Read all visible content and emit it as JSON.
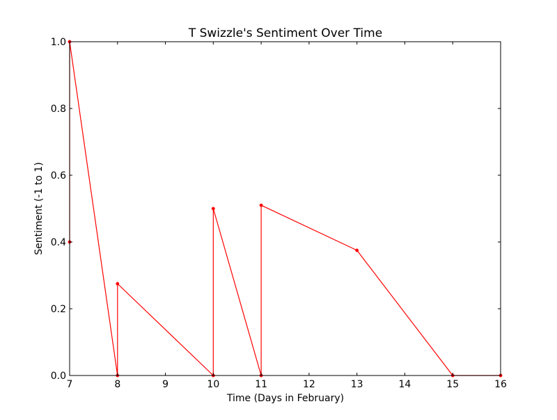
{
  "chart_data": {
    "type": "line",
    "title": "T Swizzle's Sentiment Over Time",
    "xlabel": "Time (Days in February)",
    "ylabel": "Sentiment (-1 to 1)",
    "xlim": [
      7,
      16
    ],
    "ylim": [
      0.0,
      1.0
    ],
    "xticks": [
      "7",
      "8",
      "9",
      "10",
      "11",
      "12",
      "13",
      "14",
      "15",
      "16"
    ],
    "xtick_values": [
      7,
      8,
      9,
      10,
      11,
      12,
      13,
      14,
      15,
      16
    ],
    "yticks": [
      "0.0",
      "0.2",
      "0.4",
      "0.6",
      "0.8",
      "1.0"
    ],
    "ytick_values": [
      0.0,
      0.2,
      0.4,
      0.6,
      0.8,
      1.0
    ],
    "grid": false,
    "legend": "none",
    "series": [
      {
        "color": "#ff0000",
        "marker": "dot",
        "x": [
          7,
          7,
          8,
          8,
          10,
          10,
          11,
          11,
          13,
          15,
          16
        ],
        "y": [
          0.4,
          1.0,
          0.0,
          0.275,
          0.0,
          0.5,
          0.0,
          0.51,
          0.375,
          0.0,
          0.0
        ]
      }
    ]
  }
}
